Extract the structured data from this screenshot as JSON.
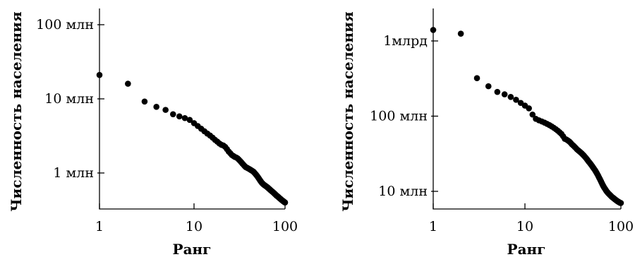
{
  "chart_data": [
    {
      "type": "scatter",
      "xscale": "log",
      "yscale": "log",
      "xlabel": "Ранг",
      "ylabel": "Численность населения",
      "xlim": [
        1,
        100
      ],
      "ylim": [
        400000,
        150000000
      ],
      "xticks": [
        {
          "value": 1,
          "label": "1"
        },
        {
          "value": 10,
          "label": "10"
        },
        {
          "value": 100,
          "label": "100"
        }
      ],
      "yticks": [
        {
          "value": 1000000,
          "label": "1 млн"
        },
        {
          "value": 10000000,
          "label": "10 млн"
        },
        {
          "value": 100000000,
          "label": "100 млн"
        }
      ],
      "x": [
        1,
        2,
        3,
        4,
        5,
        6,
        7,
        8,
        9,
        10,
        11,
        12,
        13,
        14,
        15,
        16,
        17,
        18,
        19,
        20,
        21,
        22,
        23,
        24,
        25,
        26,
        27,
        28,
        29,
        30,
        31,
        32,
        33,
        34,
        35,
        36,
        37,
        38,
        39,
        40,
        41,
        42,
        43,
        44,
        45,
        46,
        47,
        48,
        49,
        50,
        51,
        52,
        53,
        54,
        55,
        56,
        57,
        58,
        59,
        60,
        61,
        62,
        63,
        64,
        65,
        66,
        67,
        68,
        69,
        70,
        71,
        72,
        73,
        74,
        75,
        76,
        77,
        78,
        79,
        80,
        81,
        82,
        83,
        84,
        85,
        86,
        87,
        88,
        89,
        90,
        91,
        92,
        93,
        94,
        95,
        96,
        97,
        98,
        99,
        100
      ],
      "y": [
        21000000,
        16000000,
        9200000,
        7800000,
        7100000,
        6200000,
        5800000,
        5500000,
        5200000,
        4700000,
        4300000,
        3950000,
        3650000,
        3400000,
        3200000,
        3000000,
        2800000,
        2650000,
        2500000,
        2400000,
        2350000,
        2250000,
        2100000,
        1950000,
        1850000,
        1750000,
        1700000,
        1650000,
        1620000,
        1580000,
        1520000,
        1460000,
        1400000,
        1340000,
        1290000,
        1240000,
        1200000,
        1180000,
        1160000,
        1140000,
        1120000,
        1100000,
        1080000,
        1060000,
        1040000,
        1010000,
        980000,
        950000,
        920000,
        890000,
        860000,
        830000,
        800000,
        775000,
        750000,
        730000,
        715000,
        700000,
        690000,
        680000,
        670000,
        660000,
        650000,
        640000,
        630000,
        620000,
        610000,
        600000,
        590000,
        580000,
        572000,
        564000,
        556000,
        548000,
        540000,
        532000,
        524000,
        516000,
        508000,
        500000,
        494000,
        488000,
        482000,
        476000,
        470000,
        464000,
        458000,
        452000,
        447000,
        442000,
        437000,
        432000,
        427000,
        423000,
        419000,
        415000,
        411000,
        407000,
        403000,
        400000
      ]
    },
    {
      "type": "scatter",
      "xscale": "log",
      "yscale": "log",
      "xlabel": "Ранг",
      "ylabel": "Численность населения",
      "xlim": [
        1,
        100
      ],
      "ylim": [
        7000000,
        2000000000
      ],
      "xticks": [
        {
          "value": 1,
          "label": "1"
        },
        {
          "value": 10,
          "label": "10"
        },
        {
          "value": 100,
          "label": "100"
        }
      ],
      "yticks": [
        {
          "value": 10000000,
          "label": "10 млн"
        },
        {
          "value": 100000000,
          "label": "100 млн"
        },
        {
          "value": 1000000000,
          "label": "1млрд"
        }
      ],
      "x": [
        1,
        2,
        3,
        4,
        5,
        6,
        7,
        8,
        9,
        10,
        11,
        12,
        13,
        14,
        15,
        16,
        17,
        18,
        19,
        20,
        21,
        22,
        23,
        24,
        25,
        26,
        27,
        28,
        29,
        30,
        31,
        32,
        33,
        34,
        35,
        36,
        37,
        38,
        39,
        40,
        41,
        42,
        43,
        44,
        45,
        46,
        47,
        48,
        49,
        50,
        51,
        52,
        53,
        54,
        55,
        56,
        57,
        58,
        59,
        60,
        61,
        62,
        63,
        64,
        65,
        66,
        67,
        68,
        69,
        70,
        71,
        72,
        73,
        74,
        75,
        76,
        77,
        78,
        79,
        80,
        81,
        82,
        83,
        84,
        85,
        86,
        87,
        88,
        89,
        90,
        91,
        92,
        93,
        94,
        95,
        96,
        97,
        98,
        99,
        100
      ],
      "y": [
        1400000000,
        1250000000,
        320000000,
        250000000,
        210000000,
        195000000,
        180000000,
        165000000,
        150000000,
        138000000,
        127000000,
        105000000,
        92000000,
        88000000,
        85000000,
        82000000,
        79000000,
        76000000,
        73000000,
        70000000,
        67000000,
        64000000,
        61000000,
        58000000,
        54000000,
        50000000,
        49000000,
        47500000,
        46000000,
        44000000,
        42000000,
        40500000,
        39000000,
        37500000,
        36000000,
        35000000,
        34000000,
        33000000,
        32000000,
        31000000,
        30000000,
        29000000,
        28000000,
        27000000,
        26000000,
        25000000,
        24200000,
        23400000,
        22600000,
        21800000,
        21000000,
        20300000,
        19600000,
        18900000,
        18200000,
        17500000,
        16800000,
        16100000,
        15400000,
        14800000,
        14200000,
        13600000,
        13000000,
        12500000,
        12000000,
        11600000,
        11200000,
        10900000,
        10600000,
        10300000,
        10000000,
        9800000,
        9600000,
        9400000,
        9250000,
        9100000,
        8950000,
        8800000,
        8650000,
        8500000,
        8400000,
        8300000,
        8200000,
        8100000,
        8000000,
        7900000,
        7800000,
        7720000,
        7640000,
        7560000,
        7480000,
        7400000,
        7340000,
        7280000,
        7220000,
        7160000,
        7100000,
        7050000,
        7000000,
        7000000
      ]
    }
  ]
}
